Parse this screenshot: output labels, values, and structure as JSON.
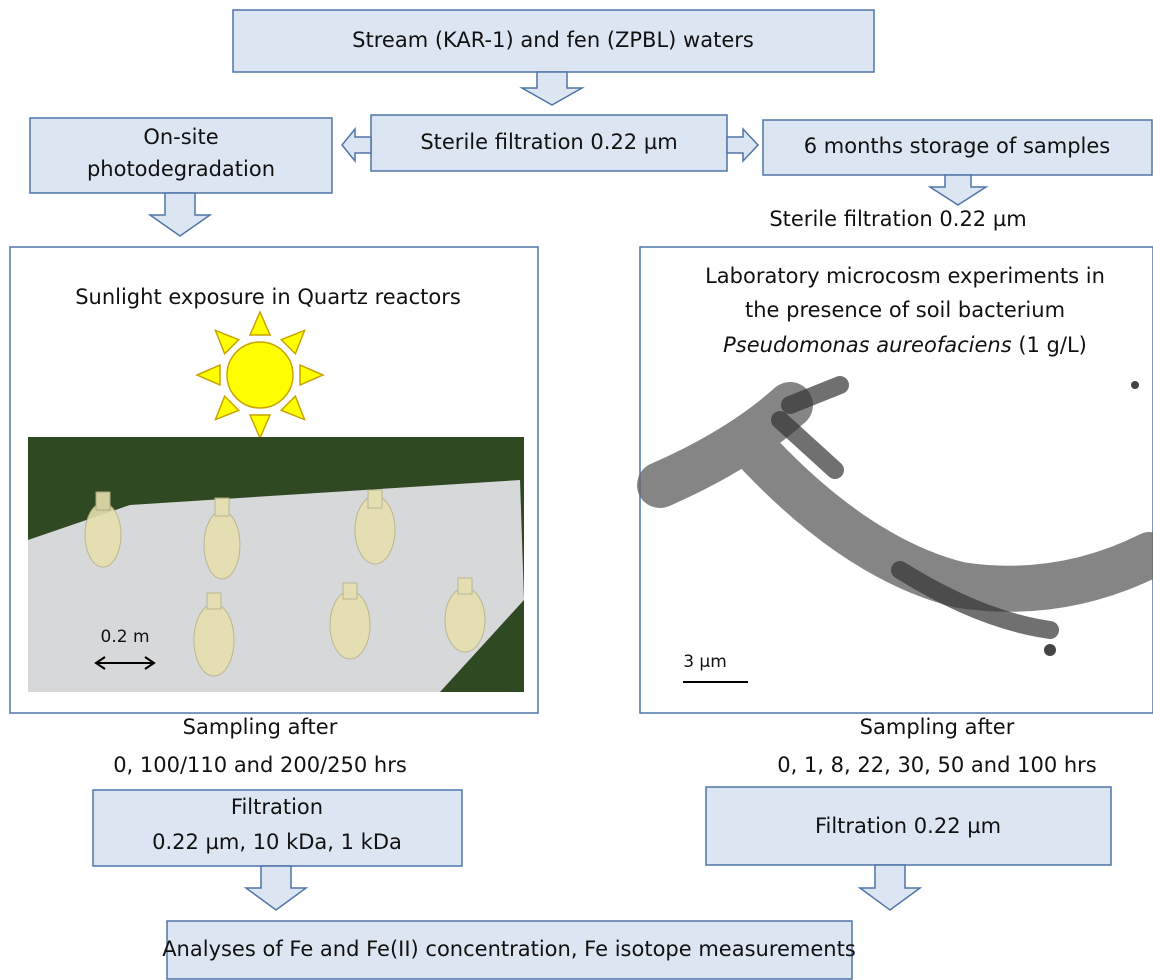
{
  "source": "Stream (KAR-1) and fen (ZPBL) waters",
  "sterile_filtration": "Sterile filtration 0.22 µm",
  "photodegradation": [
    "On-site",
    "photodegradation"
  ],
  "storage": "6 months storage of samples",
  "storage_filtration": "Sterile filtration 0.22 µm",
  "sunlight_panel": {
    "title": "Sunlight exposure in Quartz reactors",
    "scale": "0.2 m"
  },
  "microcosm_panel": {
    "lines": [
      "Laboratory microcosm experiments in",
      "the presence of soil bacterium"
    ],
    "organism": "Pseudomonas aureofaciens",
    "concentration": "(1 g/L)",
    "scale": "3 µm"
  },
  "left_sampling": [
    "Sampling after",
    "0, 100/110 and 200/250 hrs"
  ],
  "right_sampling": [
    "Sampling after",
    "0, 1, 8, 22, 30, 50 and 100 hrs"
  ],
  "left_filtration": [
    "Filtration",
    "0.22 µm, 10 kDa, 1 kDa"
  ],
  "right_filtration": "Filtration 0.22 µm",
  "analyses": "Analyses of Fe and Fe(II) concentration, Fe isotope measurements"
}
